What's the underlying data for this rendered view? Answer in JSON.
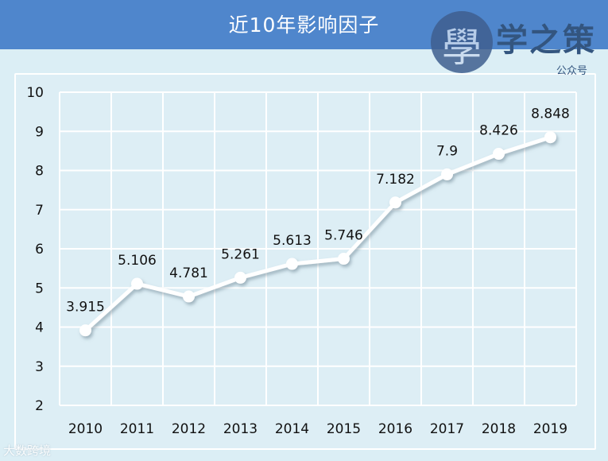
{
  "header": {
    "title": "近10年影响因子"
  },
  "logo": {
    "glyph": "學",
    "name": "学之策",
    "sub": "公众号"
  },
  "watermark": "大数跨境",
  "chart_data": {
    "type": "line",
    "title": "近10年影响因子",
    "xlabel": "",
    "ylabel": "",
    "categories": [
      "2010",
      "2011",
      "2012",
      "2013",
      "2014",
      "2015",
      "2016",
      "2017",
      "2018",
      "2019"
    ],
    "values": [
      3.915,
      5.106,
      4.781,
      5.261,
      5.613,
      5.746,
      7.182,
      7.9,
      8.426,
      8.848
    ],
    "data_labels": [
      "3.915",
      "5.106",
      "4.781",
      "5.261",
      "5.613",
      "5.746",
      "7.182",
      "7.9",
      "8.426",
      "8.848"
    ],
    "ylim": [
      2,
      10
    ],
    "yticks": [
      "2",
      "3",
      "4",
      "5",
      "6",
      "7",
      "8",
      "9",
      "10"
    ],
    "grid": true,
    "line_color": "#ffffff",
    "marker_color": "#ffffff",
    "background_color": "#dbeef5",
    "header_color": "#4f86cc"
  }
}
